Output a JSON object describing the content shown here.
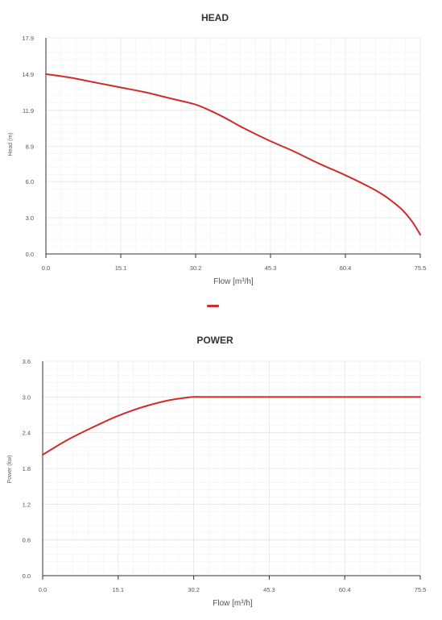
{
  "colors": {
    "series": "#d12b2b",
    "grid_major": "#e4e4e4",
    "grid_minor": "#f2f2f2",
    "axis": "#333333"
  },
  "legend": {
    "marker_color": "#d12b2b"
  },
  "chart_data": [
    {
      "type": "line",
      "title": "HEAD",
      "xlabel": "Flow [m³/h]",
      "ylabel": "Head (m)",
      "xlim": [
        0,
        75.5
      ],
      "ylim": [
        0,
        17.9
      ],
      "xticks": [
        "0.0",
        "15.1",
        "30.2",
        "45.3",
        "60.4",
        "75.5"
      ],
      "yticks": [
        "0.0",
        "3.0",
        "6.0",
        "8.9",
        "11.9",
        "14.9",
        "17.9"
      ],
      "xtick_values": [
        0,
        15.1,
        30.2,
        45.3,
        60.4,
        75.5
      ],
      "ytick_values": [
        0,
        3.0,
        6.0,
        8.9,
        11.9,
        14.9,
        17.9
      ],
      "series": [
        {
          "color": "#d12b2b",
          "x": [
            0,
            5,
            10,
            15,
            20,
            25,
            30,
            33,
            36,
            40,
            45,
            50,
            55,
            60,
            65,
            68,
            70,
            72,
            74,
            75.5
          ],
          "y": [
            14.9,
            14.6,
            14.2,
            13.8,
            13.4,
            12.9,
            12.4,
            11.9,
            11.3,
            10.4,
            9.4,
            8.5,
            7.5,
            6.6,
            5.6,
            4.9,
            4.3,
            3.6,
            2.6,
            1.6
          ]
        }
      ]
    },
    {
      "type": "line",
      "title": "POWER",
      "xlabel": "Flow [m³/h]",
      "ylabel": "Power (kw)",
      "xlim": [
        0,
        75.5
      ],
      "ylim": [
        0,
        3.6
      ],
      "xticks": [
        "0.0",
        "15.1",
        "30.2",
        "45.3",
        "60.4",
        "75.5"
      ],
      "yticks": [
        "0.0",
        "0.6",
        "1.2",
        "1.8",
        "2.4",
        "3.0",
        "3.6"
      ],
      "xtick_values": [
        0,
        15.1,
        30.2,
        45.3,
        60.4,
        75.5
      ],
      "ytick_values": [
        0,
        0.6,
        1.2,
        1.8,
        2.4,
        3.0,
        3.6
      ],
      "series": [
        {
          "color": "#d12b2b",
          "x": [
            0,
            5,
            10,
            15,
            20,
            25,
            28,
            30,
            32,
            35,
            40,
            50,
            60,
            70,
            75.5
          ],
          "y": [
            2.03,
            2.28,
            2.49,
            2.68,
            2.83,
            2.94,
            2.98,
            3.0,
            3.0,
            3.0,
            3.0,
            3.0,
            3.0,
            3.0,
            3.0
          ]
        }
      ]
    }
  ]
}
